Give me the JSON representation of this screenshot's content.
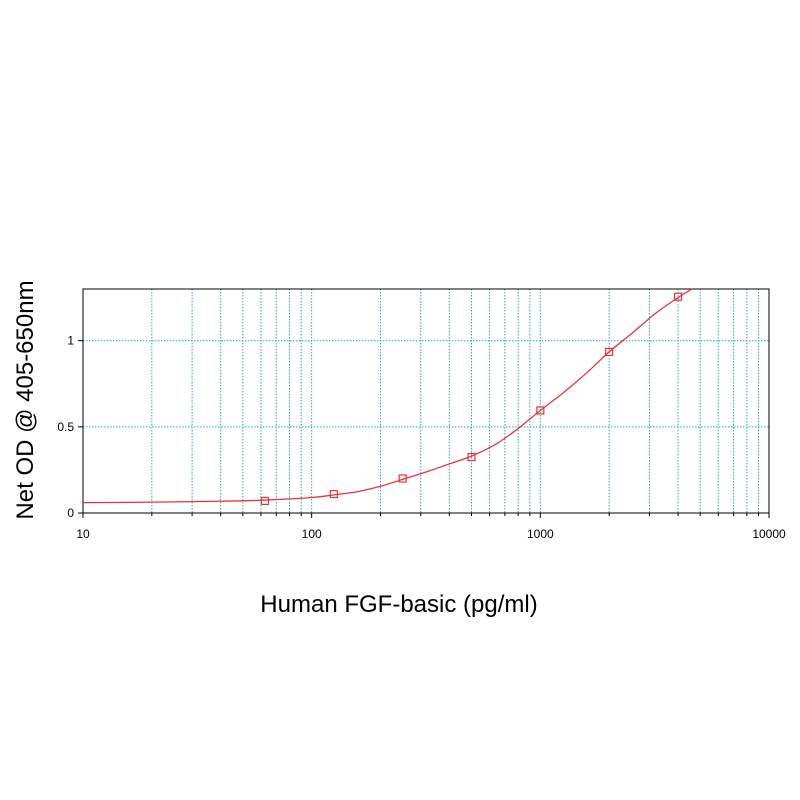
{
  "chart_data": {
    "type": "scatter",
    "title": "",
    "xlabel": "Human FGF-basic (pg/ml)",
    "ylabel": "Net OD @ 405-650nm",
    "x_scale": "log",
    "xlim": [
      10,
      10000
    ],
    "ylim": [
      0,
      1.3
    ],
    "x_ticks": [
      10,
      100,
      1000,
      10000
    ],
    "x_tick_labels": [
      "10",
      "100",
      "1000",
      "10000"
    ],
    "y_ticks": [
      0,
      0.5,
      1
    ],
    "y_tick_labels": [
      "0",
      "0.5",
      "1"
    ],
    "grid": true,
    "grid_color": "#2aa7c9",
    "series_color": "#e8343a",
    "series": [
      {
        "points": [
          {
            "x": 62.5,
            "y": 0.07
          },
          {
            "x": 125,
            "y": 0.11
          },
          {
            "x": 250,
            "y": 0.2
          },
          {
            "x": 500,
            "y": 0.325
          },
          {
            "x": 1000,
            "y": 0.595
          },
          {
            "x": 2000,
            "y": 0.935
          },
          {
            "x": 4000,
            "y": 1.255
          }
        ]
      }
    ],
    "fit_curve": {
      "x": [
        10,
        20,
        40,
        62.5,
        100,
        125,
        160,
        200,
        250,
        320,
        400,
        500,
        640,
        800,
        1000,
        1280,
        1600,
        2000,
        2500,
        3200,
        4000,
        4600
      ],
      "y": [
        0.06,
        0.063,
        0.068,
        0.075,
        0.09,
        0.105,
        0.125,
        0.155,
        0.195,
        0.24,
        0.285,
        0.33,
        0.4,
        0.49,
        0.595,
        0.705,
        0.815,
        0.935,
        1.04,
        1.16,
        1.25,
        1.3
      ]
    }
  }
}
